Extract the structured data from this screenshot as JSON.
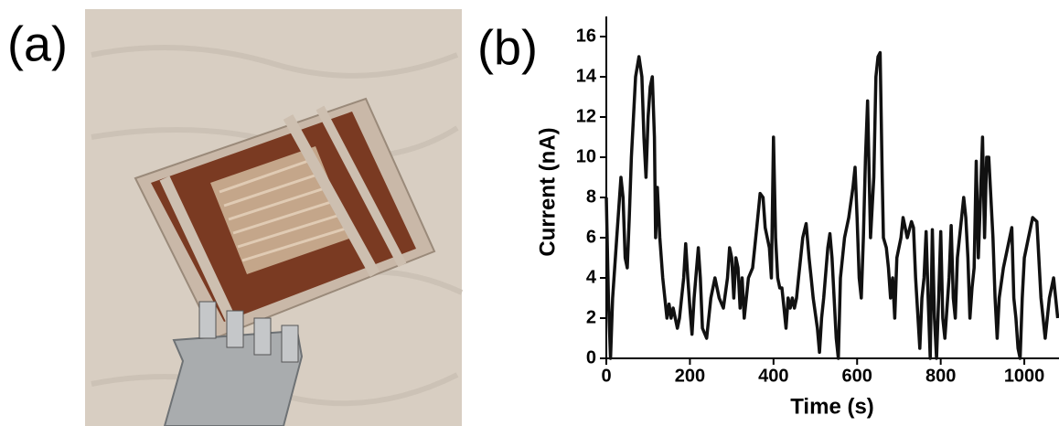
{
  "panel_labels": [
    "(a)",
    "(b)"
  ],
  "chart_data": {
    "type": "line",
    "xlabel": "Time (s)",
    "ylabel": "Current (nA)",
    "xlim": [
      0,
      1083
    ],
    "ylim": [
      0,
      17
    ],
    "xticks": [
      0,
      200,
      400,
      600,
      800,
      1000
    ],
    "yticks": [
      0,
      2,
      4,
      6,
      8,
      10,
      12,
      14,
      16
    ],
    "series": [
      {
        "color": "#111111",
        "x": [
          0,
          5,
          10,
          15,
          25,
          35,
          40,
          45,
          50,
          55,
          60,
          65,
          70,
          78,
          85,
          90,
          95,
          100,
          105,
          110,
          115,
          118,
          122,
          128,
          135,
          145,
          150,
          155,
          160,
          170,
          175,
          185,
          190,
          195,
          200,
          205,
          210,
          220,
          225,
          230,
          240,
          250,
          260,
          270,
          280,
          290,
          295,
          300,
          305,
          310,
          315,
          320,
          325,
          330,
          340,
          350,
          360,
          368,
          375,
          380,
          385,
          390,
          395,
          400,
          405,
          410,
          415,
          420,
          425,
          430,
          435,
          440,
          445,
          450,
          455,
          460,
          470,
          478,
          485,
          490,
          495,
          505,
          510,
          515,
          520,
          530,
          535,
          540,
          545,
          550,
          555,
          560,
          570,
          580,
          590,
          595,
          600,
          605,
          610,
          615,
          620,
          625,
          628,
          632,
          636,
          640,
          645,
          650,
          655,
          660,
          663,
          670,
          675,
          680,
          685,
          690,
          695,
          705,
          710,
          720,
          730,
          735,
          740,
          750,
          755,
          760,
          765,
          770,
          775,
          780,
          785,
          790,
          795,
          800,
          805,
          810,
          820,
          825,
          830,
          835,
          840,
          850,
          855,
          860,
          865,
          870,
          875,
          880,
          885,
          890,
          895,
          900,
          905,
          910,
          915,
          920,
          925,
          930,
          935,
          940,
          950,
          960,
          970,
          975,
          980,
          985,
          990,
          995,
          1000,
          1010,
          1020,
          1030,
          1040,
          1050,
          1060,
          1070,
          1080
        ],
        "values": [
          8,
          3,
          0,
          3,
          6,
          9,
          8,
          5,
          4.5,
          7,
          10,
          12,
          14,
          15,
          14,
          11,
          9,
          12,
          13.5,
          14,
          11,
          6,
          8.5,
          6,
          4,
          2,
          2.7,
          2,
          2.5,
          1.5,
          2,
          4,
          5.7,
          4,
          2.5,
          1.2,
          3,
          5.5,
          4,
          1.5,
          1,
          3,
          4,
          3,
          2.5,
          4,
          5.5,
          5,
          3,
          5,
          4.5,
          2.5,
          4,
          2,
          4,
          4.5,
          6.5,
          8.2,
          8,
          6.5,
          6,
          5.5,
          4,
          11,
          6,
          4,
          3.5,
          3.5,
          2.5,
          1.5,
          3,
          2.5,
          3,
          2.5,
          3,
          4,
          6,
          6.7,
          5,
          4,
          3,
          1.5,
          0.3,
          2,
          3,
          5.5,
          6.2,
          5,
          3,
          1,
          0,
          4,
          6,
          7,
          8.5,
          9.5,
          7,
          4,
          3,
          6,
          10,
          12.8,
          10,
          6,
          7.5,
          9,
          14,
          15,
          15.2,
          9,
          6,
          5.5,
          4.5,
          3,
          4,
          2,
          5,
          6,
          7,
          6,
          6.8,
          6.5,
          4,
          0.5,
          3,
          4,
          6.3,
          3,
          0,
          6.4,
          2,
          0,
          3,
          6.3,
          2,
          1,
          4,
          6.6,
          3,
          2,
          5,
          7,
          8,
          7,
          5,
          2,
          3.5,
          4.5,
          9.8,
          5,
          8,
          11,
          6,
          10,
          10,
          8,
          6,
          3,
          1,
          3,
          4.5,
          5.5,
          6.5,
          3,
          2,
          0.5,
          0,
          3,
          5,
          6,
          7,
          6.8,
          3,
          1,
          3,
          4,
          2
        ]
      }
    ]
  }
}
